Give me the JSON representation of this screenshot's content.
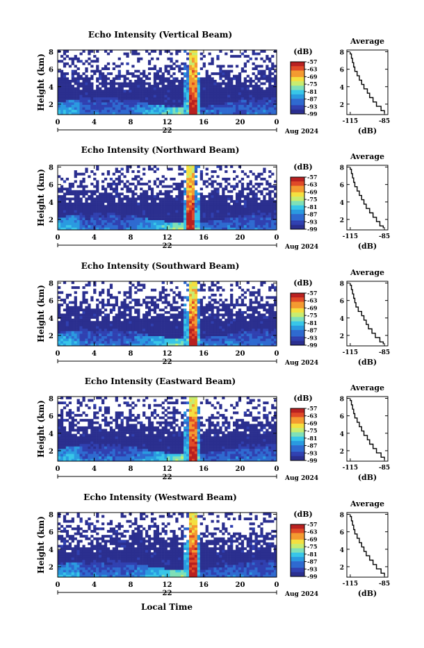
{
  "figure": {
    "xlabel": "Local Time",
    "date_center": "22",
    "date_label": "Aug 2024",
    "colorbar_unit": "(dB)",
    "avg_title": "Average",
    "avg_xlabel": "(dB)",
    "ylabel": "Height (km)",
    "colormap": [
      "#2b2f8f",
      "#3040b0",
      "#2f6ad0",
      "#2a9ae0",
      "#38c6e8",
      "#7fe0b8",
      "#c8ec70",
      "#f4e040",
      "#f49a30",
      "#e04a28",
      "#b82020"
    ]
  },
  "chart_data": [
    {
      "type": "heatmap",
      "title": "Echo Intensity (Vertical Beam)",
      "xticks": [
        "0",
        "4",
        "8",
        "12",
        "16",
        "20",
        "0"
      ],
      "yticks": [
        "2",
        "4",
        "6",
        "8"
      ],
      "xlim": [
        0,
        24
      ],
      "ylim": [
        0.8,
        8.2
      ],
      "colorbar_ticks": [
        "-57",
        "-63",
        "-69",
        "-75",
        "-81",
        "-87",
        "-93",
        "-99"
      ],
      "vlim": [
        -99,
        -57
      ],
      "spike_time": 14.8,
      "average": {
        "xticks": [
          "-115",
          "-85"
        ],
        "yticks": [
          "2",
          "4",
          "6",
          "8"
        ],
        "xlim": [
          -118,
          -82
        ],
        "height": [
          1.0,
          1.5,
          2.0,
          2.5,
          3.0,
          3.5,
          4.0,
          4.5,
          5.0,
          5.5,
          6.0,
          6.5,
          7.0,
          7.5,
          8.0
        ],
        "db": [
          -85,
          -88,
          -92,
          -95,
          -98,
          -100,
          -103,
          -105,
          -107,
          -109,
          -111,
          -112,
          -113,
          -114,
          -115
        ]
      }
    },
    {
      "type": "heatmap",
      "title": "Echo Intensity (Northward Beam)",
      "xticks": [
        "0",
        "4",
        "8",
        "12",
        "16",
        "20",
        "0"
      ],
      "yticks": [
        "2",
        "4",
        "6",
        "8"
      ],
      "xlim": [
        0,
        24
      ],
      "ylim": [
        0.8,
        8.2
      ],
      "colorbar_ticks": [
        "-57",
        "-63",
        "-69",
        "-75",
        "-81",
        "-87",
        "-93",
        "-99"
      ],
      "vlim": [
        -99,
        -57
      ],
      "spike_time": 14.6,
      "average": {
        "xticks": [
          "-115",
          "-85"
        ],
        "yticks": [
          "2",
          "4",
          "6",
          "8"
        ],
        "xlim": [
          -118,
          -82
        ],
        "height": [
          1.0,
          1.5,
          2.0,
          2.5,
          3.0,
          3.5,
          4.0,
          4.5,
          5.0,
          5.5,
          6.0,
          6.5,
          7.0,
          7.5,
          8.0
        ],
        "db": [
          -86,
          -89,
          -92,
          -95,
          -98,
          -101,
          -103,
          -105,
          -107,
          -109,
          -111,
          -112,
          -113,
          -114,
          -115
        ]
      }
    },
    {
      "type": "heatmap",
      "title": "Echo Intensity (Southward Beam)",
      "xticks": [
        "0",
        "4",
        "8",
        "12",
        "16",
        "20",
        "0"
      ],
      "yticks": [
        "2",
        "4",
        "6",
        "8"
      ],
      "xlim": [
        0,
        24
      ],
      "ylim": [
        0.8,
        8.2
      ],
      "colorbar_ticks": [
        "-57",
        "-63",
        "-69",
        "-75",
        "-81",
        "-87",
        "-93",
        "-99"
      ],
      "vlim": [
        -99,
        -57
      ],
      "spike_time": 14.8,
      "average": {
        "xticks": [
          "-115",
          "-85"
        ],
        "yticks": [
          "2",
          "4",
          "6",
          "8"
        ],
        "xlim": [
          -118,
          -82
        ],
        "height": [
          1.0,
          1.5,
          2.0,
          2.5,
          3.0,
          3.5,
          4.0,
          4.5,
          5.0,
          5.5,
          6.0,
          6.5,
          7.0,
          7.5,
          8.0
        ],
        "db": [
          -86,
          -89,
          -93,
          -96,
          -99,
          -101,
          -103,
          -105,
          -108,
          -110,
          -111,
          -112,
          -113,
          -114,
          -115
        ]
      }
    },
    {
      "type": "heatmap",
      "title": "Echo Intensity (Eastward Beam)",
      "xticks": [
        "0",
        "4",
        "8",
        "12",
        "16",
        "20",
        "0"
      ],
      "yticks": [
        "2",
        "4",
        "6",
        "8"
      ],
      "xlim": [
        0,
        24
      ],
      "ylim": [
        0.8,
        8.2
      ],
      "colorbar_ticks": [
        "-57",
        "-63",
        "-69",
        "-75",
        "-81",
        "-87",
        "-93",
        "-99"
      ],
      "vlim": [
        -99,
        -57
      ],
      "spike_time": 14.8,
      "average": {
        "xticks": [
          "-115",
          "-85"
        ],
        "yticks": [
          "2",
          "4",
          "6",
          "8"
        ],
        "xlim": [
          -118,
          -82
        ],
        "height": [
          1.0,
          1.5,
          2.0,
          2.5,
          3.0,
          3.5,
          4.0,
          4.5,
          5.0,
          5.5,
          6.0,
          6.5,
          7.0,
          7.5,
          8.0
        ],
        "db": [
          -85,
          -88,
          -92,
          -95,
          -98,
          -100,
          -103,
          -105,
          -107,
          -109,
          -111,
          -112,
          -113,
          -114,
          -115
        ]
      }
    },
    {
      "type": "heatmap",
      "title": "Echo Intensity (Westward Beam)",
      "xticks": [
        "0",
        "4",
        "8",
        "12",
        "16",
        "20",
        "0"
      ],
      "yticks": [
        "2",
        "4",
        "6",
        "8"
      ],
      "xlim": [
        0,
        24
      ],
      "ylim": [
        0.8,
        8.2
      ],
      "colorbar_ticks": [
        "-57",
        "-63",
        "-69",
        "-75",
        "-81",
        "-87",
        "-93",
        "-99"
      ],
      "vlim": [
        -99,
        -57
      ],
      "spike_time": 14.8,
      "average": {
        "xticks": [
          "-115",
          "-85"
        ],
        "yticks": [
          "2",
          "4",
          "6",
          "8"
        ],
        "xlim": [
          -118,
          -82
        ],
        "height": [
          1.0,
          1.5,
          2.0,
          2.5,
          3.0,
          3.5,
          4.0,
          4.5,
          5.0,
          5.5,
          6.0,
          6.5,
          7.0,
          7.5,
          8.0
        ],
        "db": [
          -85,
          -88,
          -92,
          -95,
          -98,
          -101,
          -103,
          -105,
          -107,
          -109,
          -111,
          -112,
          -113,
          -114,
          -115
        ]
      }
    }
  ]
}
